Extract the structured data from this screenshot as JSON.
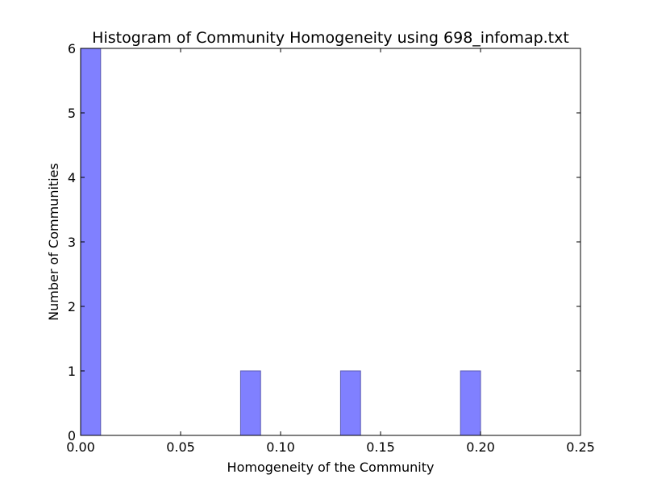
{
  "chart_data": {
    "type": "bar",
    "title": "Histogram of Community Homogeneity using 698_infomap.txt",
    "xlabel": "Homogeneity of the Community",
    "ylabel": "Number of Communities",
    "xlim": [
      0,
      0.25
    ],
    "ylim": [
      0,
      6
    ],
    "xticks": [
      "0.00",
      "0.05",
      "0.10",
      "0.15",
      "0.20",
      "0.25"
    ],
    "yticks": [
      "0",
      "1",
      "2",
      "3",
      "4",
      "5",
      "6"
    ],
    "grid": false,
    "bar_color": "#8080ff",
    "bar_edge_color": "#5a5ab4",
    "bins": [
      {
        "start": 0.0,
        "end": 0.01,
        "count": 6
      },
      {
        "start": 0.08,
        "end": 0.09,
        "count": 1
      },
      {
        "start": 0.13,
        "end": 0.14,
        "count": 1
      },
      {
        "start": 0.19,
        "end": 0.2,
        "count": 1
      }
    ]
  }
}
